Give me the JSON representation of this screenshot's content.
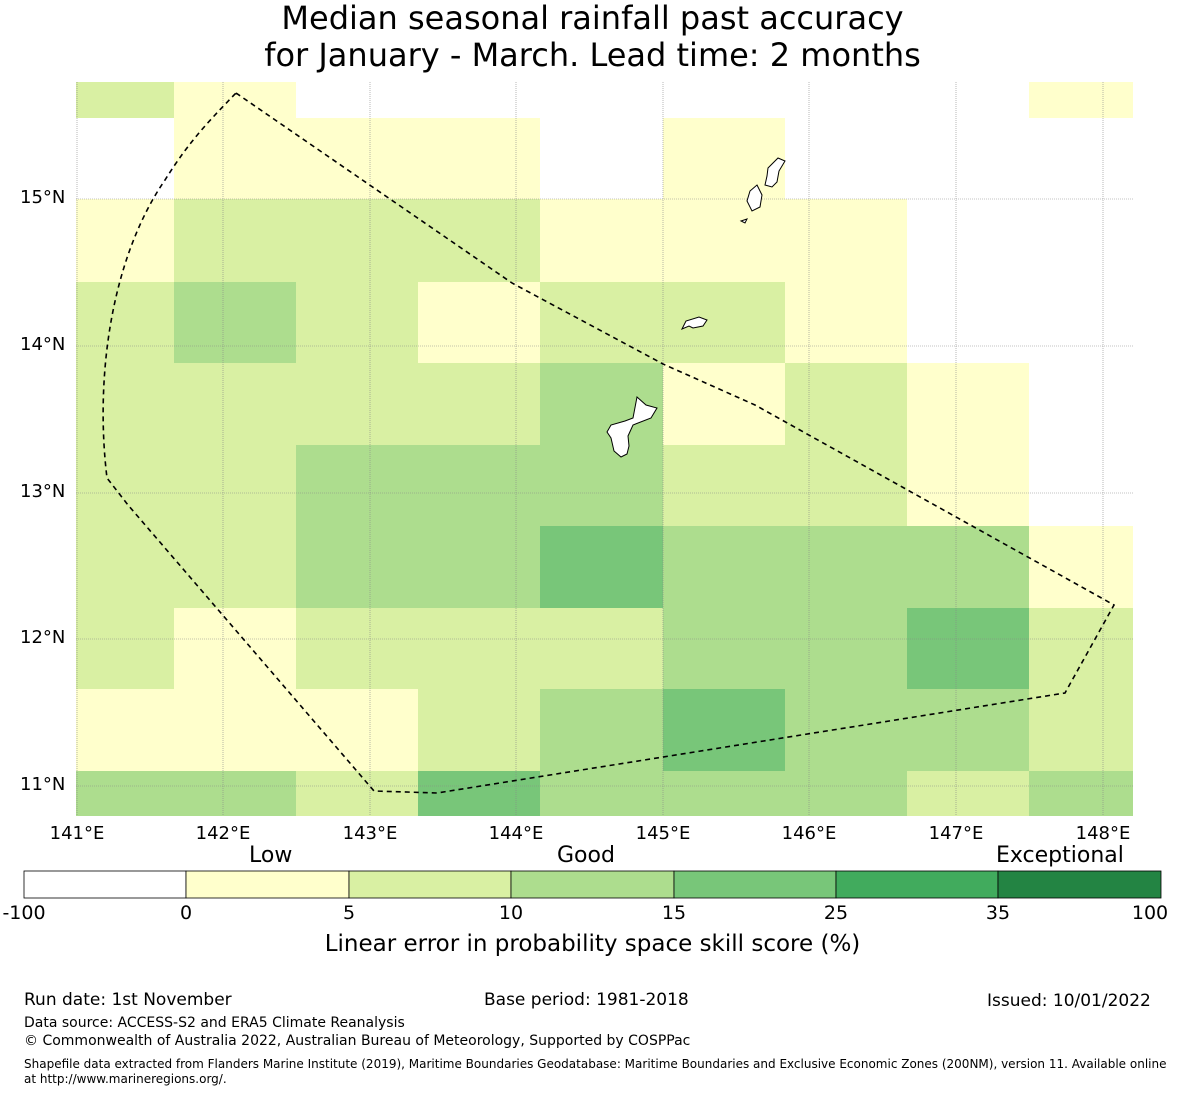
{
  "title": {
    "line1": "Median seasonal rainfall past accuracy",
    "line2": "for January - March. Lead time: 2 months"
  },
  "map": {
    "lon_labels": [
      "141°E",
      "142°E",
      "143°E",
      "144°E",
      "145°E",
      "146°E",
      "147°E",
      "148°E"
    ],
    "lat_labels": [
      "15°N",
      "14°N",
      "13°N",
      "12°N",
      "11°N"
    ],
    "grid_values": [
      [
        7,
        3,
        null,
        null,
        null,
        null,
        null,
        null,
        3
      ],
      [
        null,
        3,
        3,
        3,
        null,
        3,
        null,
        null,
        null
      ],
      [
        3,
        7,
        7,
        7,
        3,
        3,
        3,
        null,
        null
      ],
      [
        7,
        12,
        7,
        3,
        7,
        7,
        3,
        null,
        null
      ],
      [
        7,
        7,
        7,
        7,
        12,
        3,
        7,
        3,
        null
      ],
      [
        7,
        7,
        12,
        12,
        12,
        7,
        7,
        3,
        null
      ],
      [
        7,
        7,
        12,
        12,
        20,
        12,
        12,
        12,
        3
      ],
      [
        7,
        3,
        7,
        7,
        7,
        12,
        12,
        20,
        7
      ],
      [
        3,
        3,
        3,
        7,
        12,
        20,
        12,
        12,
        7
      ],
      [
        12,
        12,
        7,
        20,
        12,
        12,
        12,
        7,
        12
      ]
    ],
    "land_color": "#ffffff",
    "boundary_style": "dashed"
  },
  "colorbar": {
    "categories": [
      "Low",
      "Good",
      "Exceptional"
    ],
    "ticks": [
      "-100",
      "0",
      "5",
      "10",
      "15",
      "25",
      "35",
      "100"
    ],
    "colors": [
      "#ffffff",
      "#ffffcc",
      "#d9f0a3",
      "#addd8e",
      "#78c679",
      "#41ab5d",
      "#238443"
    ],
    "title": "Linear error in probability space skill score (%)"
  },
  "footer": {
    "run_date": "Run date: 1st November",
    "base_period": "Base period: 1981-2018",
    "issued": "Issued: 10/01/2022",
    "data_source": "Data source: ACCESS-S2 and ERA5 Climate Reanalysis",
    "copyright": "© Commonwealth of Australia 2022, Australian Bureau of Meteorology, Supported by COSPPac",
    "shapefile": "Shapefile data extracted from Flanders Marine Institute (2019), Maritime Boundaries Geodatabase: Maritime Boundaries and Exclusive Economic Zones (200NM), version 11. Available online at http://www.marineregions.org/."
  }
}
